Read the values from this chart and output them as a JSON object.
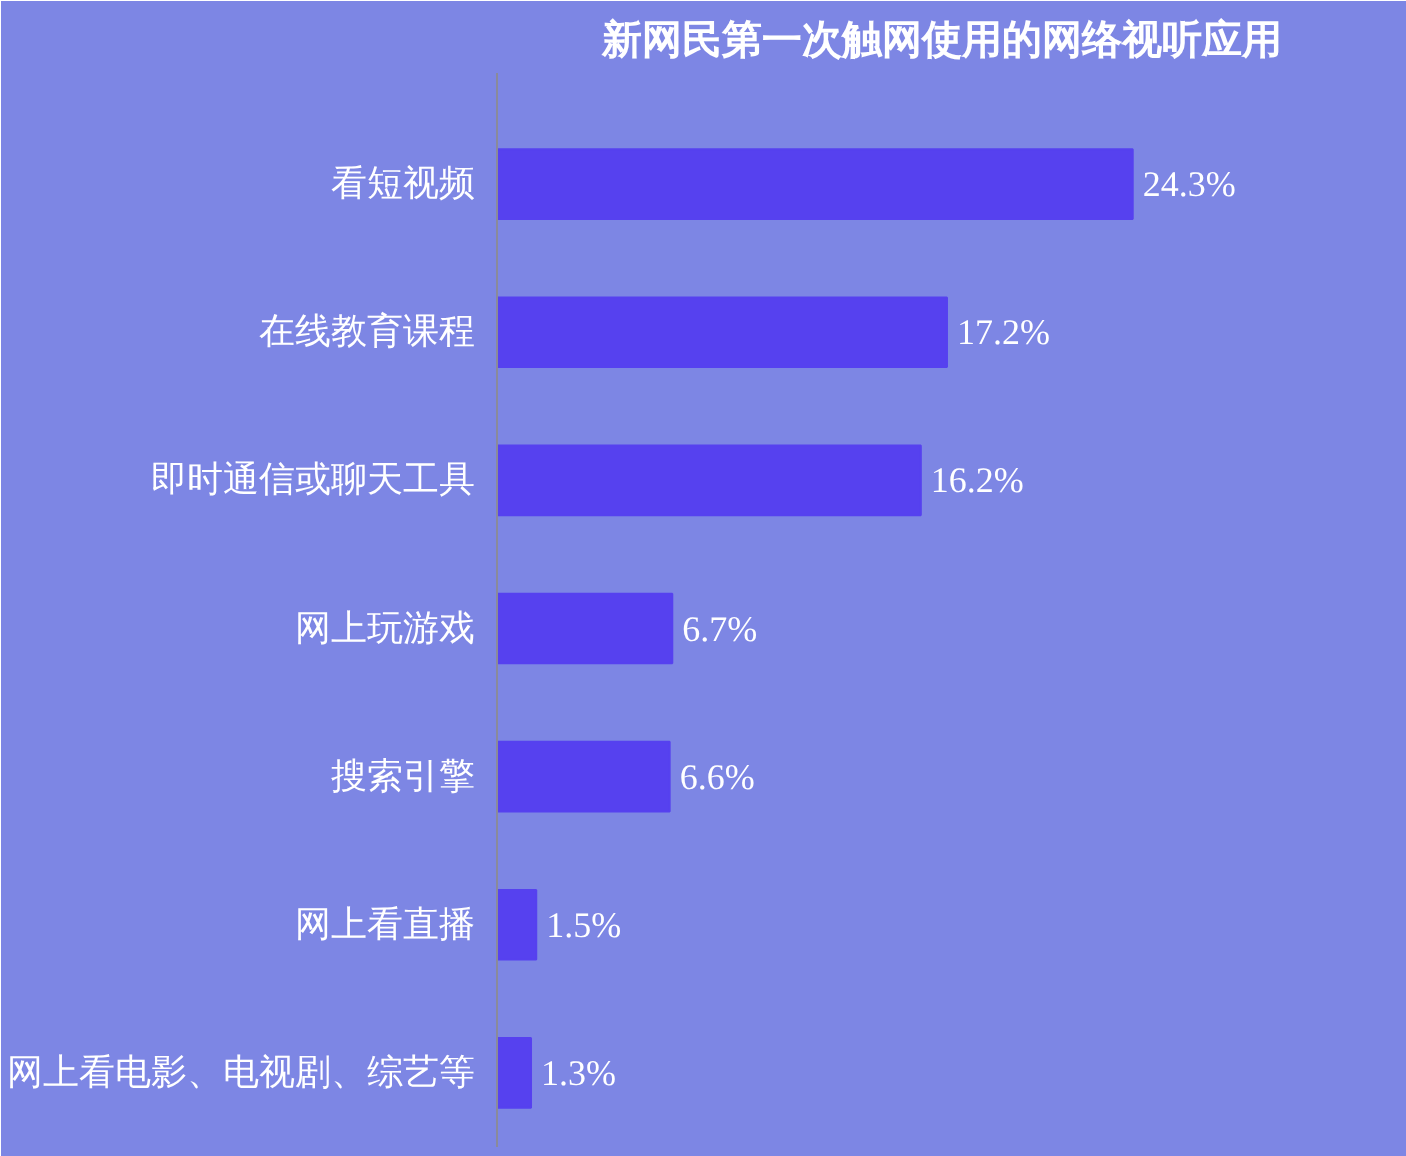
{
  "chart_data": {
    "type": "bar",
    "orientation": "horizontal",
    "title": "新网民第一次触网使用的网络视听应用",
    "categories": [
      "看短视频",
      "在线教育课程",
      "即时通信或聊天工具",
      "网上玩游戏",
      "搜索引擎",
      "网上看直播",
      "网上看电影、电视剧、综艺等"
    ],
    "values": [
      24.3,
      17.2,
      16.2,
      6.7,
      6.6,
      1.5,
      1.3
    ],
    "value_labels": [
      "24.3%",
      "17.2%",
      "16.2%",
      "6.7%",
      "6.6%",
      "1.5%",
      "1.3%"
    ],
    "color": "#5641ef"
  }
}
